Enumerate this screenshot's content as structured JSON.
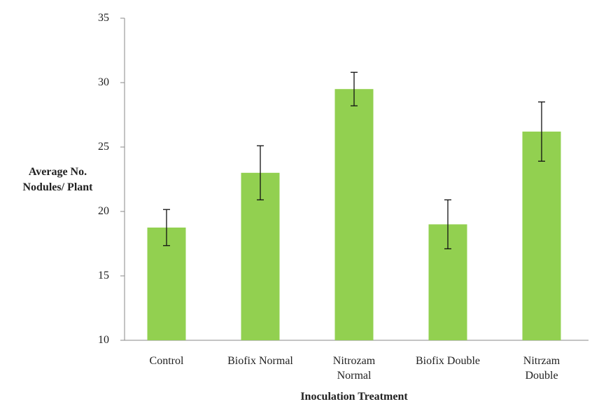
{
  "chart_data": {
    "type": "bar",
    "categories": [
      "Control",
      "Biofix Normal",
      "Nitrozam\nNormal",
      "Biofix Double",
      "Nitrzam\nDouble"
    ],
    "values": [
      18.75,
      23.0,
      29.5,
      19.0,
      26.2
    ],
    "errors": [
      1.4,
      2.1,
      1.3,
      1.9,
      2.3
    ],
    "color": "#92d050",
    "ylabel": "Average No.\nNodules/ Plant",
    "xlabel": "Inoculation Treatment",
    "ylim": [
      10,
      35
    ],
    "yticks": [
      10,
      15,
      20,
      25,
      30,
      35
    ]
  }
}
